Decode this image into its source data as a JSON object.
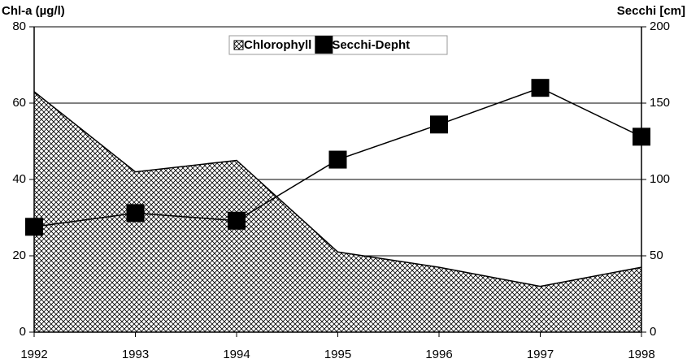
{
  "chart_data": {
    "type": "combo",
    "y_label": "Chl-a (µg/l)",
    "y2_label": "Secchi [cm]",
    "categories": [
      "1992",
      "1993",
      "1994",
      "1995",
      "1996",
      "1997",
      "1998"
    ],
    "series": [
      {
        "name": "Chlorophyll",
        "type": "area",
        "color": "#000000",
        "values": [
          63,
          42,
          45,
          21,
          17,
          12,
          17
        ]
      },
      {
        "name": "Secchi-Depht",
        "type": "line",
        "axis": "y2",
        "color": "#000000",
        "values": [
          69,
          78,
          73,
          113,
          136,
          160,
          128
        ]
      }
    ],
    "ylim": [
      0,
      80
    ],
    "yticks": [
      0,
      20,
      40,
      60,
      80
    ],
    "y2lim": [
      0,
      200
    ],
    "y2ticks": [
      0,
      50,
      100,
      150,
      200
    ],
    "grid": true,
    "legend": "top"
  }
}
